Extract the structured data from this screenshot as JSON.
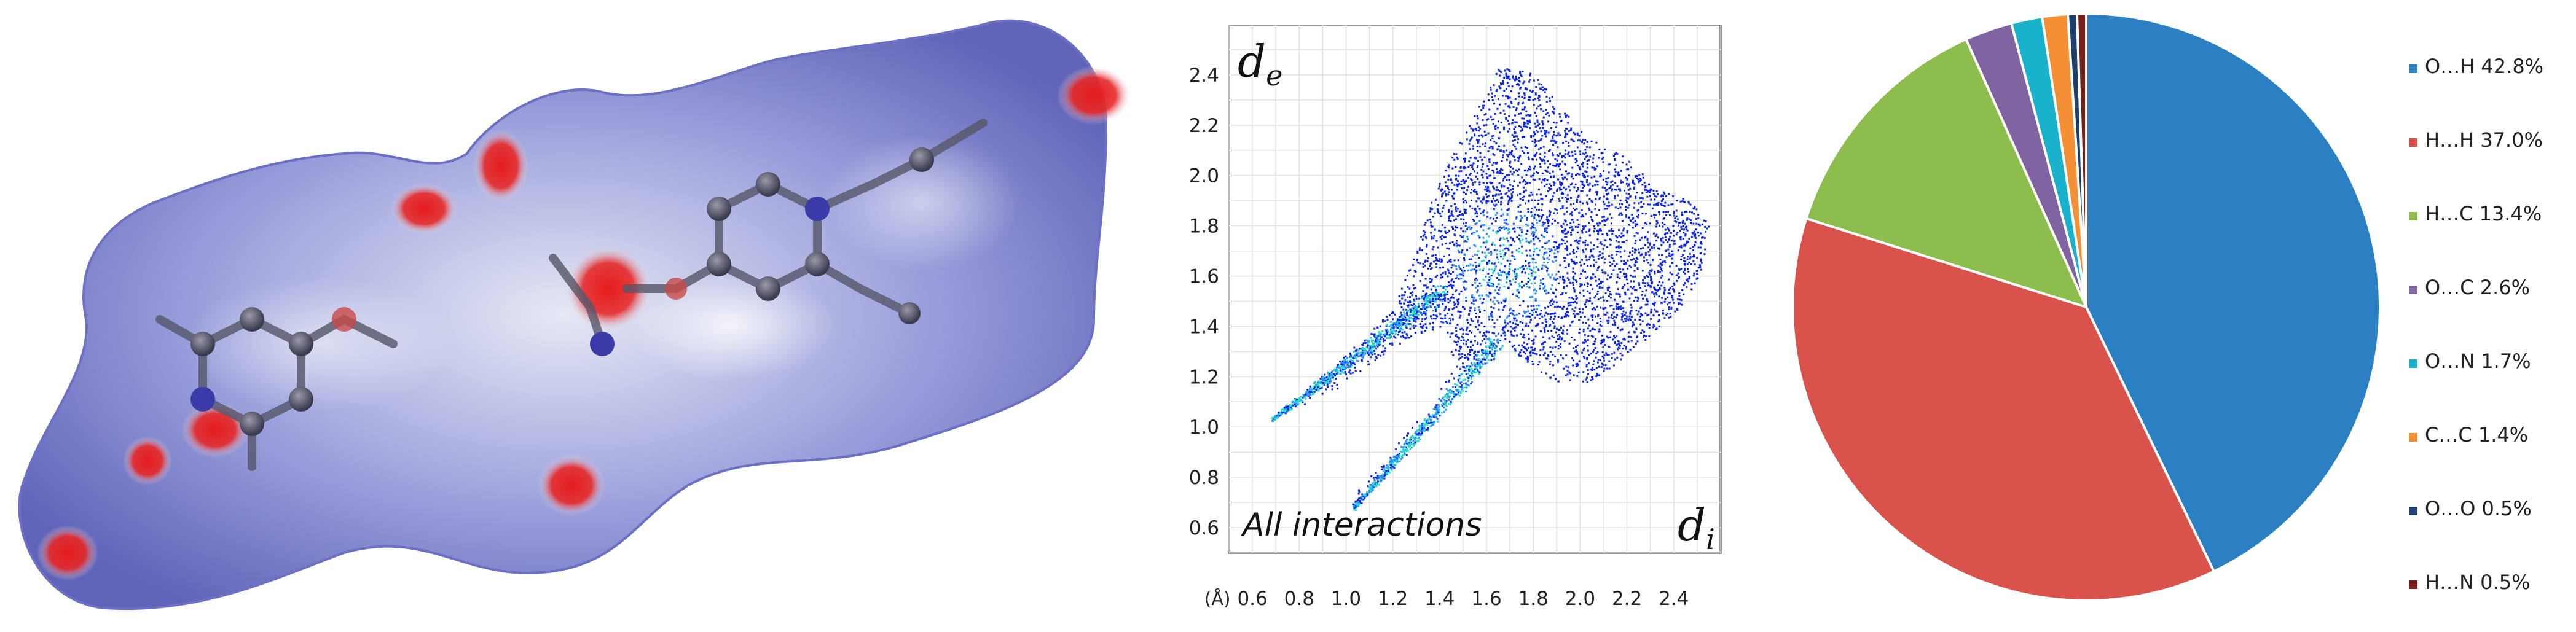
{
  "colors": {
    "surface_base": "#7479c9",
    "surface_light": "#e6e8f4",
    "hot_spot": "#e61a1a",
    "fp_low": "#0b24e6",
    "fp_mid": "#2a90ff",
    "fp_high": "#22dcc8",
    "pie": [
      "#2a80c2",
      "#d9534c",
      "#8cbd4d",
      "#8064a2",
      "#19b2cc",
      "#f58f35",
      "#1c3f6e",
      "#7b1e1a"
    ]
  },
  "fingerprint": {
    "de_label": "d",
    "de_sub": "e",
    "di_label": "d",
    "di_sub": "i",
    "annotation": "All interactions",
    "unit": "(Å)",
    "x_ticks": [
      "0.6",
      "0.8",
      "1.0",
      "1.2",
      "1.4",
      "1.6",
      "1.8",
      "2.0",
      "2.2",
      "2.4"
    ],
    "y_ticks": [
      "2.4",
      "2.2",
      "2.0",
      "1.8",
      "1.6",
      "1.4",
      "1.2",
      "1.0",
      "0.8",
      "0.6"
    ]
  },
  "chart_data": [
    {
      "type": "scatter",
      "title": "All interactions",
      "xlabel": "di",
      "ylabel": "de",
      "unit": "Å",
      "xlim": [
        0.5,
        2.6
      ],
      "ylim": [
        0.5,
        2.6
      ],
      "grid": true,
      "spikes": [
        {
          "name": "spike-1",
          "from": [
            0.68,
            1.03
          ],
          "to": [
            1.42,
            1.55
          ]
        },
        {
          "name": "spike-2",
          "from": [
            1.03,
            0.68
          ],
          "to": [
            1.65,
            1.35
          ]
        }
      ],
      "body_outline": [
        [
          0.68,
          1.03
        ],
        [
          0.95,
          1.25
        ],
        [
          1.2,
          1.47
        ],
        [
          1.3,
          1.72
        ],
        [
          1.36,
          1.9
        ],
        [
          1.45,
          2.08
        ],
        [
          1.55,
          2.25
        ],
        [
          1.65,
          2.43
        ],
        [
          1.78,
          2.42
        ],
        [
          1.9,
          2.3
        ],
        [
          2.03,
          2.15
        ],
        [
          2.15,
          2.1
        ],
        [
          2.25,
          2.03
        ],
        [
          2.32,
          1.95
        ],
        [
          2.47,
          1.9
        ],
        [
          2.55,
          1.8
        ],
        [
          2.52,
          1.62
        ],
        [
          2.43,
          1.48
        ],
        [
          2.33,
          1.4
        ],
        [
          2.2,
          1.28
        ],
        [
          2.03,
          1.18
        ],
        [
          1.9,
          1.18
        ],
        [
          1.78,
          1.25
        ],
        [
          1.65,
          1.35
        ],
        [
          1.4,
          1.15
        ],
        [
          1.03,
          0.68
        ],
        [
          1.02,
          0.72
        ],
        [
          1.35,
          1.08
        ],
        [
          1.47,
          1.25
        ],
        [
          1.4,
          1.4
        ],
        [
          1.25,
          1.35
        ],
        [
          0.95,
          1.15
        ]
      ],
      "dense_region": {
        "center": [
          1.68,
          1.65
        ],
        "spread": [
          0.25,
          0.25
        ]
      }
    },
    {
      "type": "pie",
      "start": "top, clockwise",
      "legend_position": "right",
      "labels": [
        "O…H",
        "H…H",
        "H…C",
        "O…C",
        "O…N",
        "C…C",
        "O…O",
        "H…N"
      ],
      "values": [
        42.8,
        37.0,
        13.4,
        2.6,
        1.7,
        1.4,
        0.5,
        0.5
      ],
      "legend": [
        "O…H 42.8%",
        "H…H 37.0%",
        "H…C 13.4%",
        "O…C 2.6%",
        "O…N 1.7%",
        "C…C 1.4%",
        "O…O 0.5%",
        "H…N 0.5%"
      ]
    }
  ]
}
